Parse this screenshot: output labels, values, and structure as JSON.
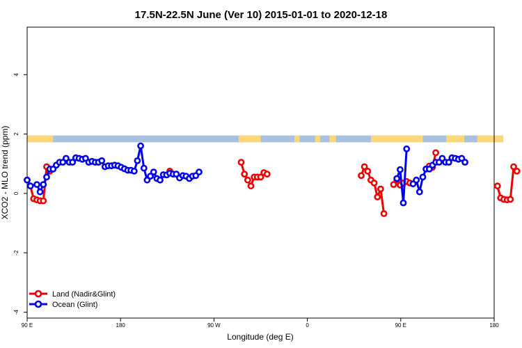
{
  "chart_data": {
    "type": "line",
    "title": "17.5N-22.5N June (Ver 10)   2015-01-01 to 2020-12-18",
    "xlabel": "Longitude (deg E)",
    "ylabel": "XCO2 - MLO trend (ppm)",
    "xlim": [
      90,
      450
    ],
    "ylim": [
      -4.2,
      5.6
    ],
    "x_ticks": [
      {
        "value": 90,
        "label": "90 E"
      },
      {
        "value": 180,
        "label": "180"
      },
      {
        "value": 270,
        "label": "90 W"
      },
      {
        "value": 360,
        "label": "0"
      },
      {
        "value": 450,
        "label": "90 E"
      },
      {
        "value": 540,
        "label": "180"
      }
    ],
    "y_ticks": [
      {
        "value": -4,
        "label": "-4"
      },
      {
        "value": -2,
        "label": "-2"
      },
      {
        "value": 0,
        "label": "0"
      },
      {
        "value": 2,
        "label": "2"
      },
      {
        "value": 4,
        "label": "4"
      }
    ],
    "land_ocean_strip": {
      "y_range": [
        1.72,
        1.95
      ],
      "ocean_color": "#a8bfe0",
      "land_color": "#fbd77a",
      "land_spans": [
        [
          90,
          110
        ],
        [
          253,
          270
        ],
        [
          296,
          300
        ],
        [
          312,
          316
        ],
        [
          323,
          328
        ],
        [
          355,
          395
        ],
        [
          413,
          427
        ],
        [
          437,
          457
        ]
      ]
    },
    "series": [
      {
        "name": "Land (Nadir&Glint)",
        "color": "#ee0000",
        "segments": [
          [
            [
              90,
              0.45
            ],
            [
              92.5,
              0.25
            ],
            [
              95,
              -0.18
            ],
            [
              97.5,
              -0.22
            ],
            [
              100,
              -0.25
            ],
            [
              102.5,
              -0.25
            ],
            [
              105,
              0.9
            ],
            [
              107.5,
              0.75
            ]
          ],
          [
            [
              200,
              0.75
            ]
          ],
          [
            [
              255,
              1.05
            ],
            [
              257.5,
              0.65
            ],
            [
              260,
              0.45
            ],
            [
              262.5,
              0.25
            ],
            [
              265,
              0.55
            ],
            [
              267.5,
              0.55
            ],
            [
              270,
              0.55
            ],
            [
              272.5,
              0.7
            ],
            [
              275,
              0.65
            ]
          ],
          [
            [
              347.5,
              0.6
            ],
            [
              350,
              0.9
            ],
            [
              352.5,
              0.75
            ],
            [
              355,
              0.45
            ],
            [
              357.5,
              0.35
            ],
            [
              360,
              -0.12
            ],
            [
              362.5,
              0.15
            ],
            [
              365,
              -0.68
            ]
          ],
          [
            [
              372.5,
              0.3
            ],
            [
              375,
              0.45
            ],
            [
              377.5,
              0.28
            ],
            [
              380,
              0.35
            ],
            [
              382.5,
              0.4
            ],
            [
              385,
              0.35
            ]
          ],
          [
            [
              400,
              0.92
            ],
            [
              402.5,
              0.88
            ],
            [
              405,
              1.37
            ]
          ],
          [
            [
              452.5,
              0.25
            ],
            [
              455,
              -0.15
            ],
            [
              457.5,
              -0.2
            ],
            [
              460,
              -0.22
            ],
            [
              462.5,
              -0.2
            ],
            [
              465,
              0.9
            ],
            [
              467.5,
              0.75
            ]
          ]
        ]
      },
      {
        "name": "Ocean (Glint)",
        "color": "#0000ee",
        "segments": [
          [
            [
              90,
              0.45
            ],
            [
              92.5,
              0.25
            ],
            [
              97.5,
              0.3
            ],
            [
              100,
              0.05
            ],
            [
              102.5,
              0.3
            ],
            [
              105,
              0.55
            ],
            [
              107.5,
              0.82
            ],
            [
              110,
              0.82
            ],
            [
              112.5,
              0.95
            ],
            [
              115,
              1.05
            ],
            [
              117.5,
              1.05
            ],
            [
              120,
              1.18
            ],
            [
              122.5,
              1.05
            ],
            [
              125,
              1.05
            ],
            [
              127.5,
              1.2
            ],
            [
              130,
              1.18
            ],
            [
              132.5,
              1.15
            ],
            [
              135,
              1.18
            ],
            [
              137.5,
              1.05
            ],
            [
              140,
              1.08
            ],
            [
              142.5,
              1.05
            ],
            [
              145,
              1.05
            ],
            [
              147.5,
              1.1
            ],
            [
              150,
              0.9
            ],
            [
              152.5,
              0.93
            ],
            [
              155,
              0.93
            ],
            [
              157.5,
              0.95
            ],
            [
              160,
              0.93
            ],
            [
              162.5,
              0.88
            ],
            [
              165,
              0.83
            ],
            [
              167.5,
              0.78
            ],
            [
              170,
              0.78
            ],
            [
              172.5,
              0.75
            ],
            [
              175,
              1.1
            ],
            [
              177.5,
              1.6
            ],
            [
              180,
              0.85
            ],
            [
              182.5,
              0.45
            ],
            [
              185,
              0.58
            ],
            [
              187.5,
              0.72
            ],
            [
              190,
              0.5
            ],
            [
              192.5,
              0.45
            ],
            [
              195,
              0.63
            ],
            [
              197.5,
              0.62
            ],
            [
              200,
              0.68
            ],
            [
              202.5,
              0.65
            ],
            [
              205,
              0.65
            ],
            [
              207.5,
              0.52
            ],
            [
              210,
              0.6
            ],
            [
              212.5,
              0.58
            ],
            [
              215,
              0.5
            ],
            [
              217.5,
              0.58
            ],
            [
              220,
              0.6
            ],
            [
              222.5,
              0.72
            ]
          ],
          [
            [
              375,
              0.5
            ],
            [
              377.5,
              0.8
            ],
            [
              380,
              -0.32
            ],
            [
              382.5,
              1.5
            ]
          ],
          [
            [
              387.5,
              0.32
            ],
            [
              390,
              0.45
            ],
            [
              392.5,
              0.05
            ],
            [
              395,
              0.55
            ],
            [
              397.5,
              0.82
            ],
            [
              400,
              0.82
            ],
            [
              402.5,
              0.95
            ],
            [
              405,
              1.05
            ],
            [
              407.5,
              1.05
            ],
            [
              410,
              1.18
            ],
            [
              412.5,
              1.05
            ],
            [
              415,
              1.05
            ],
            [
              417.5,
              1.2
            ],
            [
              420,
              1.18
            ],
            [
              422.5,
              1.15
            ],
            [
              425,
              1.18
            ],
            [
              427.5,
              1.05
            ]
          ]
        ]
      }
    ],
    "legend": {
      "position": "bottom-left",
      "entries": [
        "Land (Nadir&Glint)",
        "Ocean (Glint)"
      ]
    }
  }
}
